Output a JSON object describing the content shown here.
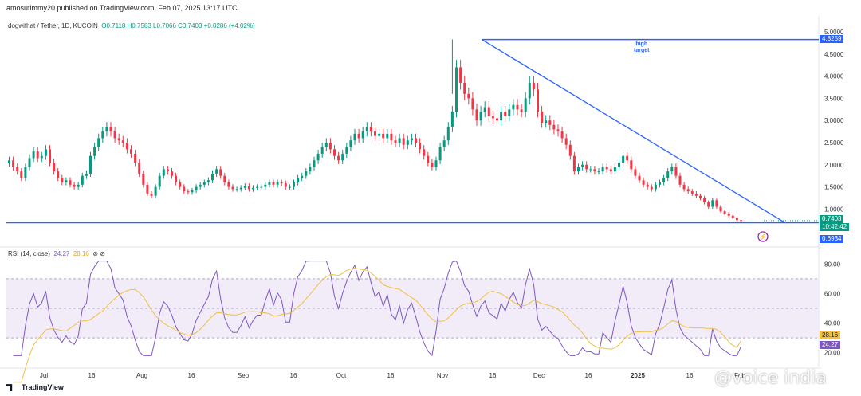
{
  "header": {
    "publisher_line": "amosutimmy20 published on TradingView.com, Feb 07, 2025 13:17 UTC"
  },
  "legend": {
    "symbol": "dogwifhat / Tether, 1D, KUCOIN",
    "ohlc": "O0.7118  H0.7583  L0.7066  C0.7403  +0.0286 (+4.02%)"
  },
  "rsi_legend": {
    "label": "RSI (14, close)",
    "rsi": "24.27",
    "ma": "28.16"
  },
  "annotation": {
    "line1": "high",
    "line2": "target"
  },
  "price_tags": {
    "high_target": "4.8259",
    "last": "0.7403",
    "countdown": "10:42:42",
    "support": "0.6934",
    "rsi_ma": "28.16",
    "rsi": "24.27"
  },
  "colors": {
    "up": "#089981",
    "down": "#f23645",
    "line": "#2962ff",
    "rsi": "#7e57c2",
    "rsi_ma": "#f0c040",
    "band": "#ede7f6"
  },
  "branding": {
    "logo": "TradingView",
    "watermark": "@voice india"
  },
  "chart_data": [
    {
      "type": "candlestick",
      "title": "dogwifhat / Tether, 1D, KUCOIN",
      "ylim": [
        0.4,
        5.0
      ],
      "y_ticks": [
        "5.0000",
        "4.5000",
        "4.0000",
        "3.5000",
        "3.0000",
        "2.5000",
        "2.0000",
        "1.5000",
        "1.0000"
      ],
      "x_ticks": [
        "Jul",
        "16",
        "Aug",
        "16",
        "Sep",
        "16",
        "Oct",
        "16",
        "Nov",
        "16",
        "Dec",
        "16",
        "2025",
        "16",
        "Feb"
      ],
      "close": [
        2.1,
        1.95,
        1.85,
        1.7,
        1.95,
        2.15,
        2.3,
        2.15,
        2.2,
        2.35,
        2.05,
        1.85,
        1.7,
        1.6,
        1.65,
        1.55,
        1.5,
        1.55,
        1.75,
        1.8,
        2.2,
        2.4,
        2.6,
        2.75,
        2.85,
        2.75,
        2.6,
        2.55,
        2.5,
        2.35,
        2.25,
        2.05,
        1.8,
        1.55,
        1.35,
        1.3,
        1.5,
        1.75,
        1.9,
        1.85,
        1.75,
        1.6,
        1.5,
        1.4,
        1.38,
        1.42,
        1.5,
        1.55,
        1.6,
        1.65,
        1.8,
        1.9,
        1.75,
        1.6,
        1.5,
        1.45,
        1.45,
        1.48,
        1.52,
        1.45,
        1.48,
        1.5,
        1.5,
        1.55,
        1.6,
        1.55,
        1.6,
        1.58,
        1.5,
        1.5,
        1.6,
        1.7,
        1.75,
        1.85,
        1.95,
        2.1,
        2.25,
        2.4,
        2.5,
        2.35,
        2.2,
        2.1,
        2.25,
        2.4,
        2.55,
        2.7,
        2.6,
        2.75,
        2.85,
        2.75,
        2.65,
        2.7,
        2.6,
        2.7,
        2.55,
        2.5,
        2.6,
        2.45,
        2.55,
        2.6,
        2.5,
        2.35,
        2.2,
        2.05,
        1.95,
        2.1,
        2.4,
        2.55,
        2.85,
        3.2,
        4.2,
        3.85,
        3.6,
        3.5,
        3.25,
        3.0,
        3.2,
        3.3,
        3.1,
        3.05,
        3.0,
        3.2,
        3.1,
        3.25,
        3.35,
        3.25,
        3.2,
        3.5,
        3.85,
        3.7,
        3.2,
        2.95,
        3.0,
        2.9,
        2.8,
        2.75,
        2.6,
        2.45,
        2.2,
        1.85,
        1.95,
        2.0,
        1.9,
        1.9,
        1.85,
        1.85,
        1.95,
        1.9,
        1.85,
        1.95,
        2.05,
        2.2,
        2.1,
        1.9,
        1.75,
        1.65,
        1.55,
        1.5,
        1.45,
        1.55,
        1.6,
        1.7,
        1.85,
        1.95,
        1.75,
        1.55,
        1.45,
        1.4,
        1.35,
        1.3,
        1.25,
        1.15,
        1.05,
        1.2,
        1.05,
        0.95,
        0.9,
        0.85,
        0.8,
        0.75,
        0.74
      ],
      "level_high_target": 4.8259,
      "level_support": 0.6934,
      "last": 0.7403
    },
    {
      "type": "line",
      "title": "RSI (14, close)",
      "ylim": [
        15,
        85
      ],
      "y_ticks": [
        "80.00",
        "60.00",
        "40.00",
        "20.00"
      ],
      "bands": [
        30,
        70
      ],
      "series": [
        {
          "name": "RSI",
          "last": 24.27
        },
        {
          "name": "MA",
          "last": 28.16
        }
      ]
    }
  ]
}
